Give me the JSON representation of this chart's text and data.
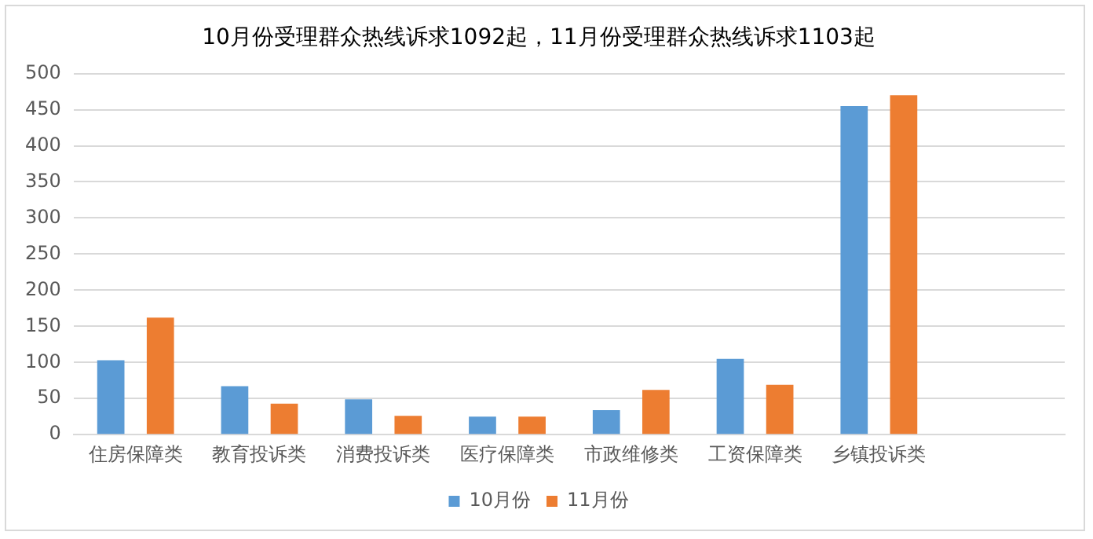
{
  "chart_data": {
    "type": "bar",
    "title": "10月份受理群众热线诉求1092起，11月份受理群众热线诉求1103起",
    "categories": [
      "住房保障类",
      "教育投诉类",
      "消费投诉类",
      "医疗保障类",
      "市政维修类",
      "工资保障类",
      "乡镇投诉类",
      null
    ],
    "series": [
      {
        "name": "10月份",
        "color": "#5b9bd5",
        "values": [
          103,
          67,
          49,
          25,
          34,
          105,
          455,
          null
        ]
      },
      {
        "name": "11月份",
        "color": "#ed7d31",
        "values": [
          162,
          43,
          26,
          25,
          62,
          69,
          470,
          null
        ]
      }
    ],
    "ylim": [
      0,
      500
    ],
    "yticks": [
      0,
      50,
      100,
      150,
      200,
      250,
      300,
      350,
      400,
      450,
      500
    ],
    "grid": "y",
    "legend": "bottom"
  }
}
